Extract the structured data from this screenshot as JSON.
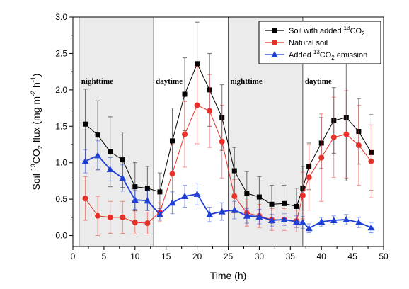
{
  "chart_data": {
    "type": "line",
    "title": "",
    "xlabel": "Time (h)",
    "ylabel": {
      "pre": "Soil ",
      "sup1": "13",
      "mid": "CO",
      "sub": "2",
      "post": " flux (mg m",
      "sup2": "-2",
      "gap": " h",
      "sup3": "-1",
      "end": ")"
    },
    "xlim": [
      0,
      50
    ],
    "ylim": [
      -0.15,
      3.0
    ],
    "xticks": [
      0,
      5,
      10,
      15,
      20,
      25,
      30,
      35,
      40,
      45,
      50
    ],
    "yticks": [
      0.0,
      0.5,
      1.0,
      1.5,
      2.0,
      2.5,
      3.0
    ],
    "grid": false,
    "legend_position": "top-right",
    "regions": [
      {
        "label": "nighttime",
        "x": [
          1,
          13
        ],
        "shaded": true
      },
      {
        "label": "daytime",
        "x": [
          13,
          25
        ],
        "shaded": false
      },
      {
        "label": "nighttime",
        "x": [
          25,
          37
        ],
        "shaded": true
      },
      {
        "label": "daytime",
        "x": [
          37,
          49
        ],
        "shaded": false
      }
    ],
    "series": [
      {
        "name": {
          "pre": "Soil  with added ",
          "sup": "13",
          "mid": "CO",
          "sub": "2",
          "post": ""
        },
        "color": "#000000",
        "marker": "square",
        "x": [
          2,
          4,
          6,
          8,
          10,
          12,
          14,
          16,
          18,
          20,
          22,
          24,
          26,
          28,
          30,
          32,
          34,
          36,
          37,
          38,
          40,
          42,
          44,
          46,
          48
        ],
        "y": [
          1.53,
          1.38,
          1.15,
          1.04,
          0.67,
          0.65,
          0.6,
          1.3,
          1.94,
          2.36,
          2.0,
          1.62,
          0.89,
          0.58,
          0.53,
          0.43,
          0.44,
          0.4,
          0.65,
          0.95,
          1.27,
          1.58,
          1.62,
          1.43,
          1.14
        ],
        "err": [
          0.48,
          0.47,
          0.48,
          0.38,
          0.33,
          0.3,
          0.26,
          0.45,
          0.5,
          0.57,
          0.5,
          0.45,
          0.32,
          0.3,
          0.28,
          0.26,
          0.25,
          0.25,
          0.3,
          0.32,
          0.35,
          0.45,
          0.87,
          0.45,
          0.52
        ]
      },
      {
        "name": {
          "pre": "Natural soil",
          "sup": "",
          "mid": "",
          "sub": "",
          "post": ""
        },
        "color": "#e8302a",
        "marker": "circle",
        "x": [
          2,
          4,
          6,
          8,
          10,
          12,
          14,
          16,
          18,
          20,
          22,
          24,
          26,
          28,
          30,
          32,
          34,
          36,
          37,
          38,
          40,
          42,
          44,
          46,
          48
        ],
        "y": [
          0.51,
          0.27,
          0.25,
          0.25,
          0.18,
          0.17,
          0.32,
          0.85,
          1.39,
          1.79,
          1.71,
          1.29,
          0.54,
          0.31,
          0.27,
          0.22,
          0.22,
          0.2,
          0.55,
          0.8,
          1.07,
          1.35,
          1.39,
          1.24,
          1.02
        ],
        "err": [
          0.3,
          0.27,
          0.22,
          0.22,
          0.16,
          0.15,
          0.13,
          0.4,
          0.45,
          0.53,
          0.5,
          0.5,
          0.23,
          0.18,
          0.16,
          0.15,
          0.15,
          0.15,
          0.32,
          0.45,
          0.6,
          0.55,
          0.6,
          0.55,
          0.5
        ]
      },
      {
        "name": {
          "pre": "Added ",
          "sup": "13",
          "mid": "CO",
          "sub": "2",
          "post": " emission"
        },
        "color": "#1f3fd6",
        "marker": "triangle",
        "x": [
          2,
          4,
          6,
          8,
          10,
          12,
          14,
          16,
          18,
          20,
          22,
          24,
          26,
          28,
          30,
          32,
          34,
          36,
          37,
          38,
          40,
          42,
          44,
          46,
          48
        ],
        "y": [
          1.02,
          1.1,
          0.91,
          0.79,
          0.49,
          0.48,
          0.29,
          0.45,
          0.54,
          0.57,
          0.29,
          0.33,
          0.35,
          0.27,
          0.26,
          0.21,
          0.22,
          0.19,
          0.18,
          0.1,
          0.19,
          0.21,
          0.22,
          0.18,
          0.11
        ],
        "err": [
          0.16,
          0.2,
          0.16,
          0.18,
          0.13,
          0.14,
          0.08,
          0.15,
          0.15,
          0.15,
          0.1,
          0.12,
          0.12,
          0.1,
          0.1,
          0.08,
          0.08,
          0.08,
          0.08,
          0.06,
          0.06,
          0.06,
          0.07,
          0.07,
          0.07
        ]
      }
    ]
  }
}
